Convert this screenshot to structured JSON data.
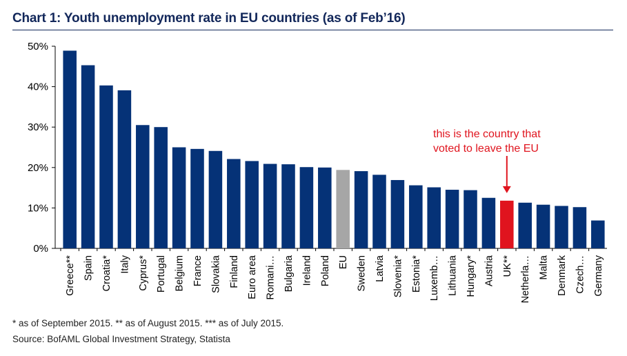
{
  "title": "Chart 1:  Youth unemployment rate in EU countries (as of Feb’16)",
  "annotation": {
    "line1": "this is the country that",
    "line2": "voted to leave the EU"
  },
  "footnotes": {
    "asterisks": "* as of September 2015. ** as of August 2015. *** as of July 2015.",
    "source": "Source: BofAML Global Investment Strategy, Statista"
  },
  "colors": {
    "default_bar": "#053277",
    "eu_bar": "#a6a6a6",
    "uk_bar": "#e0141e",
    "title": "#12275a",
    "annotation": "#e0141e"
  },
  "chart_data": {
    "type": "bar",
    "title": "Chart 1:  Youth unemployment rate in EU countries (as of Feb’16)",
    "xlabel": "",
    "ylabel": "",
    "ylim": [
      0,
      50
    ],
    "yticks": [
      "0%",
      "10%",
      "20%",
      "30%",
      "40%",
      "50%"
    ],
    "grid": false,
    "categories": [
      "Greece**",
      "Spain",
      "Croatia*",
      "Italy",
      "Cyprus*",
      "Portugal",
      "Belgium",
      "France",
      "Slovakia",
      "Finland",
      "Euro area",
      "Romani…",
      "Bulgaria",
      "Ireland",
      "Poland",
      "EU",
      "Sweden",
      "Latvia",
      "Slovenia*",
      "Estonia*",
      "Luxemb…",
      "Lithuania",
      "Hungary*",
      "Austria",
      "UK**",
      "Netherla…",
      "Malta",
      "Denmark",
      "Czech…",
      "Germany"
    ],
    "values": [
      48.9,
      45.3,
      40.3,
      39.1,
      30.5,
      30.0,
      25.0,
      24.6,
      24.1,
      22.1,
      21.6,
      20.9,
      20.8,
      20.1,
      20.0,
      19.4,
      19.1,
      18.2,
      16.9,
      15.6,
      15.1,
      14.5,
      14.4,
      12.5,
      11.8,
      11.3,
      10.8,
      10.5,
      10.2,
      6.9
    ],
    "highlight": {
      "EU": "#a6a6a6",
      "UK**": "#e0141e"
    }
  }
}
